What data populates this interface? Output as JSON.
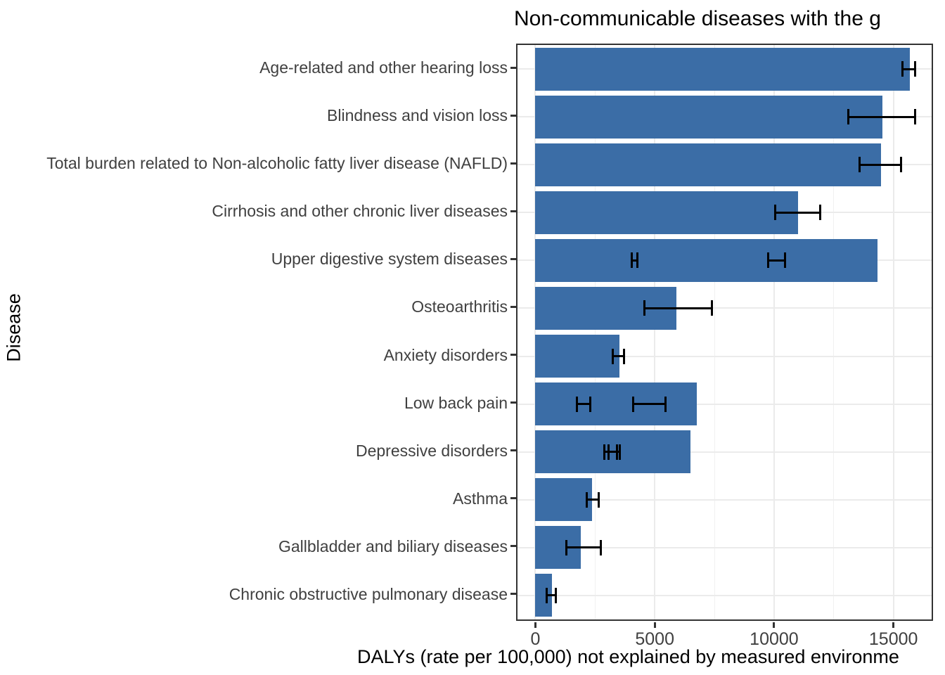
{
  "title": "Non-communicable diseases with the g",
  "axes": {
    "x_label": "DALYs (rate per 100,000) not explained by measured environme",
    "y_label": "Disease"
  },
  "colors": {
    "bar": "#3B6DA6",
    "error_bar": "#000000",
    "panel_border": "#333333",
    "grid_major": "#ebebeb",
    "grid_minor": "#f1f1f1",
    "axis_text": "#404040"
  },
  "chart_data": {
    "type": "bar",
    "orientation": "horizontal",
    "title": "Non-communicable diseases with the g",
    "xlabel": "DALYs (rate per 100,000) not explained by measured environme",
    "ylabel": "Disease",
    "xlim": [
      -750,
      16600
    ],
    "x_ticks": [
      0,
      5000,
      10000,
      15000
    ],
    "x_minor_ticks": [
      2500,
      7500,
      12500
    ],
    "grid": true,
    "legend": "none",
    "categories": [
      "Age-related and other hearing loss",
      "Blindness and vision loss",
      "Total burden related to Non-alcoholic fatty liver disease (NAFLD)",
      "Cirrhosis and other chronic liver diseases",
      "Upper digestive system diseases",
      "Osteoarthritis",
      "Anxiety disorders",
      "Low back pain",
      "Depressive disorders",
      "Asthma",
      "Gallbladder and biliary diseases",
      "Chronic obstructive pulmonary disease"
    ],
    "values": [
      15680,
      14530,
      14470,
      11000,
      14320,
      5900,
      3520,
      6770,
      6500,
      2370,
      1910,
      680
    ],
    "error_bars": [
      [
        [
          15380,
          15900
        ]
      ],
      [
        [
          13120,
          15910
        ]
      ],
      [
        [
          13590,
          15320
        ]
      ],
      [
        [
          10060,
          11940
        ]
      ],
      [
        [
          4030,
          4260
        ],
        [
          9760,
          10470
        ]
      ],
      [
        [
          4580,
          7400
        ]
      ],
      [
        [
          3240,
          3700
        ]
      ],
      [
        [
          1740,
          2300
        ],
        [
          4110,
          5440
        ]
      ],
      [
        [
          2880,
          3410
        ],
        [
          3060,
          3530
        ]
      ],
      [
        [
          2150,
          2650
        ]
      ],
      [
        [
          1290,
          2740
        ]
      ],
      [
        [
          480,
          850
        ]
      ]
    ]
  }
}
